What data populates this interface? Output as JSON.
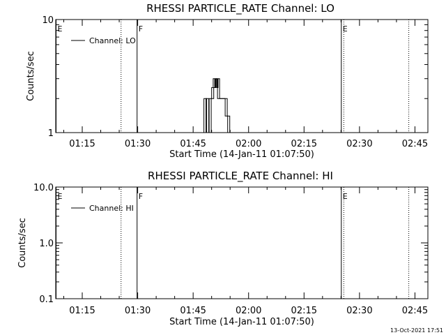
{
  "chart_data": [
    {
      "type": "line",
      "title": "RHESSI PARTICLE_RATE Channel: LO",
      "xlabel": "Start Time (14-Jan-11 01:07:50)",
      "ylabel": "Counts/sec",
      "y_scale": "log",
      "ylim": [
        1,
        10
      ],
      "y_ticks": [
        1,
        10
      ],
      "y_tick_labels": [
        "1",
        "10"
      ],
      "xlim": [
        "01:07:50",
        "02:48:30"
      ],
      "x_tick_labels": [
        "01:15",
        "01:30",
        "01:45",
        "02:00",
        "02:15",
        "02:30",
        "02:45"
      ],
      "x_tick_values": [
        "01:15",
        "01:30",
        "01:45",
        "02:00",
        "02:15",
        "02:30",
        "02:45"
      ],
      "legend_position": "top-left",
      "series": [
        {
          "name": "Channel: LO",
          "points": [
            [
              "01:47:55",
              1
            ],
            [
              "01:47:55",
              2
            ],
            [
              "01:48:40",
              2
            ],
            [
              "01:48:40",
              1
            ],
            [
              "01:49:20",
              1
            ],
            [
              "01:49:20",
              2
            ],
            [
              "01:50:00",
              2
            ],
            [
              "01:50:00",
              2.5
            ],
            [
              "01:50:25",
              2.5
            ],
            [
              "01:50:25",
              3
            ],
            [
              "01:50:50",
              3
            ],
            [
              "01:50:50",
              2.5
            ],
            [
              "01:51:10",
              2.5
            ],
            [
              "01:51:10",
              3
            ],
            [
              "01:51:35",
              3
            ],
            [
              "01:51:35",
              2
            ],
            [
              "01:53:40",
              2
            ],
            [
              "01:53:40",
              1.4
            ],
            [
              "01:54:20",
              1.4
            ],
            [
              "01:54:20",
              1
            ]
          ]
        }
      ],
      "markers": [
        {
          "label": "E",
          "time": "01:07:50",
          "style": "solid"
        },
        {
          "label": "",
          "time": "01:25:30",
          "style": "dotted"
        },
        {
          "label": "F",
          "time": "01:29:50",
          "style": "solid"
        },
        {
          "label": "E",
          "time": "02:25:05",
          "style": "solid"
        },
        {
          "label": "",
          "time": "02:25:45",
          "style": "dotted"
        },
        {
          "label": "",
          "time": "02:43:20",
          "style": "dotted"
        }
      ]
    },
    {
      "type": "line",
      "title": "RHESSI PARTICLE_RATE Channel: HI",
      "xlabel": "Start Time (14-Jan-11 01:07:50)",
      "ylabel": "Counts/sec",
      "y_scale": "log",
      "ylim": [
        0.1,
        10
      ],
      "y_ticks": [
        0.1,
        1,
        10
      ],
      "y_tick_labels": [
        "0.1",
        "1.0",
        "10.0"
      ],
      "xlim": [
        "01:07:50",
        "02:48:30"
      ],
      "x_tick_labels": [
        "01:15",
        "01:30",
        "01:45",
        "02:00",
        "02:15",
        "02:30",
        "02:45"
      ],
      "x_tick_values": [
        "01:15",
        "01:30",
        "01:45",
        "02:00",
        "02:15",
        "02:30",
        "02:45"
      ],
      "legend_position": "top-left",
      "series": [
        {
          "name": "Channel: HI",
          "points": []
        }
      ],
      "markers": [
        {
          "label": "E",
          "time": "01:07:50",
          "style": "solid"
        },
        {
          "label": "",
          "time": "01:25:30",
          "style": "dotted"
        },
        {
          "label": "F",
          "time": "01:29:50",
          "style": "solid"
        },
        {
          "label": "E",
          "time": "02:25:05",
          "style": "solid"
        },
        {
          "label": "",
          "time": "02:25:45",
          "style": "dotted"
        },
        {
          "label": "",
          "time": "02:43:20",
          "style": "dotted"
        }
      ]
    }
  ],
  "footer": {
    "timestamp": "13-Oct-2021 17:51"
  }
}
